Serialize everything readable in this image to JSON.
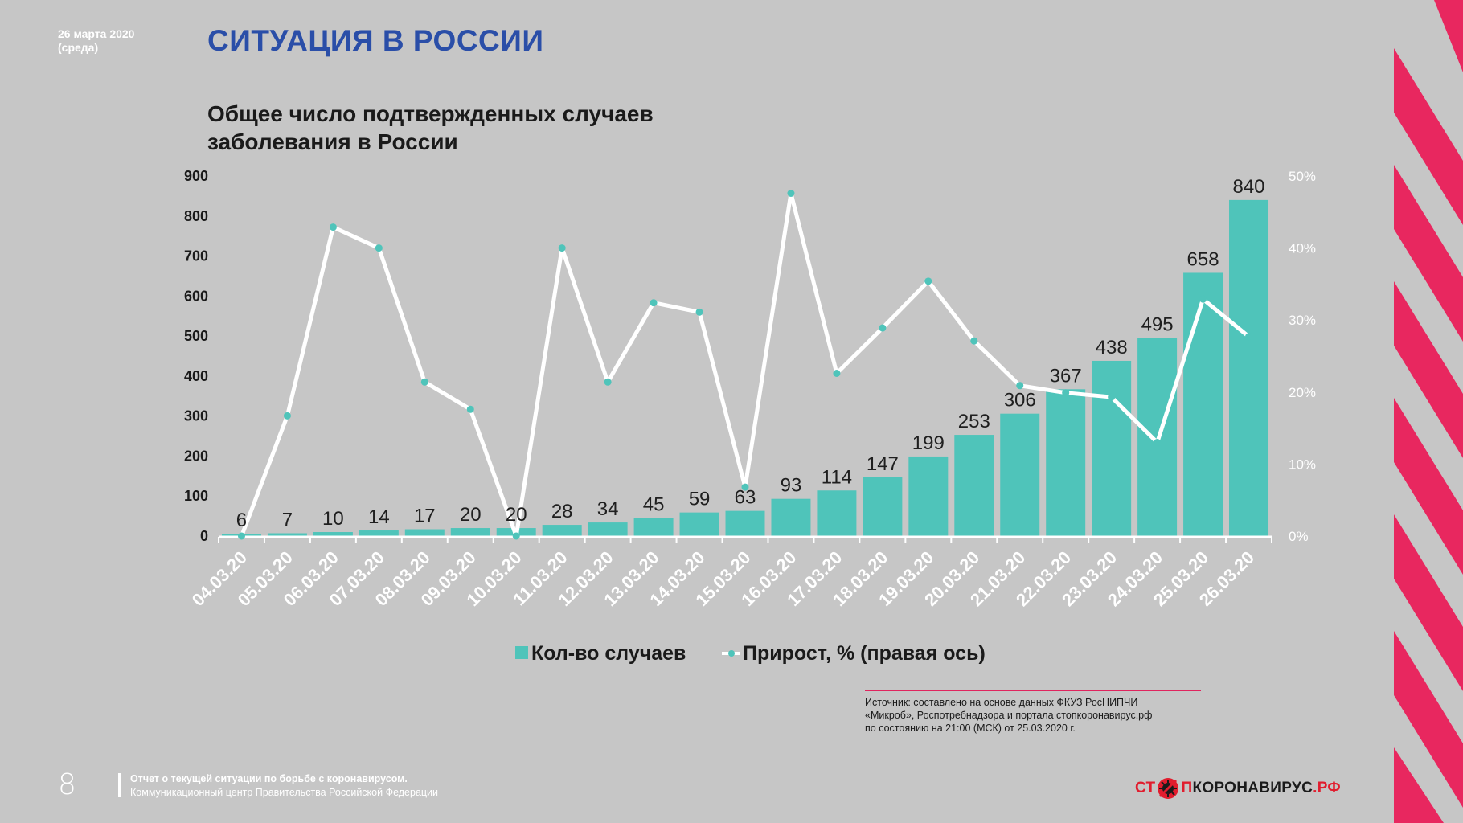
{
  "header": {
    "date_line1": "26 марта 2020",
    "date_line2": "(среда)",
    "title": "СИТУАЦИЯ В РОССИИ"
  },
  "chart_data": {
    "type": "bar",
    "title_line1": "Общее число подтвержденных случаев",
    "title_line2": "заболевания в России",
    "categories": [
      "04.03.20",
      "05.03.20",
      "06.03.20",
      "07.03.20",
      "08.03.20",
      "09.03.20",
      "10.03.20",
      "11.03.20",
      "12.03.20",
      "13.03.20",
      "14.03.20",
      "15.03.20",
      "16.03.20",
      "17.03.20",
      "18.03.20",
      "19.03.20",
      "20.03.20",
      "21.03.20",
      "22.03.20",
      "23.03.20",
      "24.03.20",
      "25.03.20",
      "26.03.20"
    ],
    "series": [
      {
        "name": "Кол-во случаев",
        "type": "bar",
        "axis": "left",
        "color": "#4fc4ba",
        "values": [
          6,
          7,
          10,
          14,
          17,
          20,
          20,
          28,
          34,
          45,
          59,
          63,
          93,
          114,
          147,
          199,
          253,
          306,
          367,
          438,
          495,
          658,
          840
        ],
        "labels": [
          "6",
          "7",
          "10",
          "14",
          "17",
          "20",
          "20",
          "28",
          "34",
          "45",
          "59",
          "63",
          "93",
          "114",
          "147",
          "199",
          "253",
          "306",
          "367",
          "438",
          "495",
          "658",
          "840"
        ]
      },
      {
        "name": "Прирост, % (правая ось)",
        "type": "line",
        "axis": "right",
        "color": "#ffffff",
        "marker_color": "#4fc4ba",
        "values": [
          0,
          16.7,
          42.9,
          40.0,
          21.4,
          17.6,
          0,
          40.0,
          21.4,
          32.4,
          31.1,
          6.8,
          47.6,
          22.6,
          28.9,
          35.4,
          27.1,
          20.9,
          19.9,
          19.3,
          13.0,
          32.9,
          27.7
        ]
      }
    ],
    "y_left": {
      "min": 0,
      "max": 900,
      "ticks": [
        "0",
        "100",
        "200",
        "300",
        "400",
        "500",
        "600",
        "700",
        "800",
        "900"
      ]
    },
    "y_right": {
      "min": 0,
      "max": 50,
      "ticks": [
        "0%",
        "10%",
        "20%",
        "30%",
        "40%",
        "50%"
      ]
    },
    "grid": false,
    "legend_position": "bottom"
  },
  "source": {
    "line1": "Источник: составлено на основе данных ФКУЗ РосНИПЧИ",
    "line2": "«Микроб», Роспотребнадзора и портала стопкоронавирус.рф",
    "line3": "по состоянию на 21:00 (МСК) от 25.03.2020 г."
  },
  "footer": {
    "page_number": "8",
    "line1": "Отчет о текущей ситуации по борьбе с коронавирусом.",
    "line2": "Коммуникационный центр Правительства Российской Федерации"
  },
  "logo": {
    "part1": "СТ",
    "part2": "П",
    "part3": "КОРОНАВИРУС",
    "part4": ".РФ"
  },
  "colors": {
    "background": "#c6c6c6",
    "title_blue": "#2a4ea8",
    "bar_teal": "#4fc4ba",
    "accent_pink": "#e8275f"
  }
}
